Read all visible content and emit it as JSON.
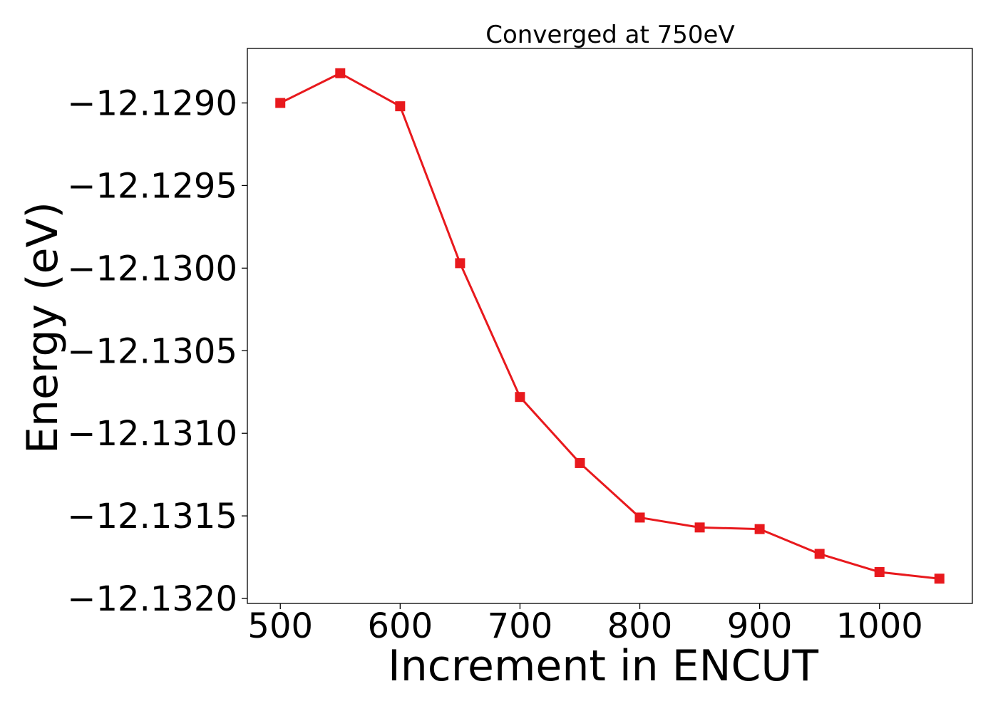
{
  "chart_data": {
    "type": "line",
    "title": "Converged at 750eV",
    "xlabel": "Increment in ENCUT",
    "ylabel": "Energy (eV)",
    "x": [
      500,
      550,
      600,
      650,
      700,
      750,
      800,
      850,
      900,
      950,
      1000,
      1050
    ],
    "series": [
      {
        "values": [
          -12.129,
          -12.12882,
          -12.12902,
          -12.12997,
          -12.13078,
          -12.13118,
          -12.13151,
          -12.13157,
          -12.13158,
          -12.13173,
          -12.13184,
          -12.13188
        ]
      }
    ],
    "xlim": [
      472.5,
      1077.5
    ],
    "ylim": [
      -12.13203,
      -12.12867
    ],
    "x_ticks": [
      500,
      600,
      700,
      800,
      900,
      1000
    ],
    "x_tick_labels": [
      "500",
      "600",
      "700",
      "800",
      "900",
      "1000"
    ],
    "y_ticks": [
      -12.129,
      -12.1295,
      -12.13,
      -12.1305,
      -12.131,
      -12.1315,
      -12.132
    ],
    "y_tick_labels": [
      "−12.1290",
      "−12.1295",
      "−12.1300",
      "−12.1305",
      "−12.1310",
      "−12.1315",
      "−12.1320"
    ],
    "grid": false,
    "legend": "none",
    "marker": "square",
    "line_color": "#e8191d"
  }
}
